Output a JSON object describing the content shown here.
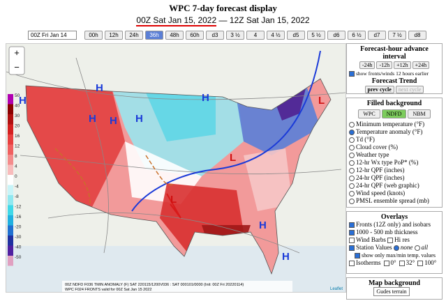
{
  "header": {
    "title": "WPC 7-day forecast display",
    "valid_start": "00Z Sat Jan 15, 2022",
    "separator": "—",
    "valid_end": "12Z Sat Jan 15, 2022"
  },
  "controls": {
    "init_select": "00Z Fri Jan 14",
    "tabs": [
      "00h",
      "12h",
      "24h",
      "36h",
      "48h",
      "60h",
      "d3",
      "3 ½",
      "4",
      "4 ½",
      "d5",
      "5 ½",
      "d6",
      "6 ½",
      "d7",
      "7 ½",
      "d8"
    ],
    "active_tab": 3
  },
  "map": {
    "zoom_in": "+",
    "zoom_out": "−",
    "legend": {
      "values": [
        50,
        40,
        30,
        20,
        16,
        12,
        8,
        4,
        0,
        -4,
        -8,
        -12,
        -16,
        -20,
        -30,
        -40,
        -50
      ],
      "colors": [
        "#b000b0",
        "#8b0000",
        "#b01010",
        "#d42020",
        "#e84040",
        "#f06060",
        "#f48c8c",
        "#f8bcbc",
        "#ffffff",
        "#c8f4f8",
        "#90e8f0",
        "#40d8e8",
        "#20b0e0",
        "#2070d0",
        "#2030a0",
        "#5020a0",
        "#e0a0c0"
      ]
    },
    "symbols": [
      "H",
      "H",
      "H",
      "H",
      "H",
      "H",
      "H",
      "H",
      "L",
      "L",
      "L"
    ],
    "caption": [
      "00Z NDFD F036 TMIN ANOMALY (F)  SAT 220115/1200V036 : SAT 000101/0000 (Init: 00Z Fri 20220114)",
      "WPC F024 FRONTS valid for 00Z Sat Jan 15 2022"
    ],
    "attribution": "Leaflet"
  },
  "panel": {
    "advance": {
      "title": "Forecast-hour advance interval",
      "buttons": [
        "-24h",
        "-12h",
        "+12h",
        "+24h"
      ],
      "checkbox": "show fronts/winds 12 hours earlier"
    },
    "trend": {
      "title": "Forecast Trend",
      "buttons": [
        "prev cycle",
        "next cycle"
      ]
    },
    "filled": {
      "title": "Filled background",
      "tabs": [
        "WPC",
        "NDFD",
        "NBM"
      ],
      "active_tab": 1,
      "options": [
        "Minimum temperature (°F)",
        "Temperature anomaly (°F)",
        "Td (°F)",
        "Cloud cover (%)",
        "Weather type",
        "12-hr Wx type PoP* (%)",
        "12-hr QPF (inches)",
        "24-hr QPF (inches)",
        "24-hr QPF (web graphic)",
        "Wind speed (knots)",
        "PMSL ensemble spread (mb)"
      ],
      "selected": 1
    },
    "overlays": {
      "title": "Overlays",
      "fronts": "Fronts (12Z only) and isobars",
      "thickness": "1000 - 500 mb thickness",
      "barbs": "Wind Barbs",
      "hires": "Hi res",
      "stations": "Station Values",
      "none": "none",
      "all": "all",
      "maxmin": "show only max/min temp. values",
      "isotherms": "Isotherms",
      "iso_opts": [
        "0°",
        "32°",
        "100°"
      ]
    },
    "background": {
      "title": "Map background",
      "select": "Gudes terrain"
    }
  }
}
